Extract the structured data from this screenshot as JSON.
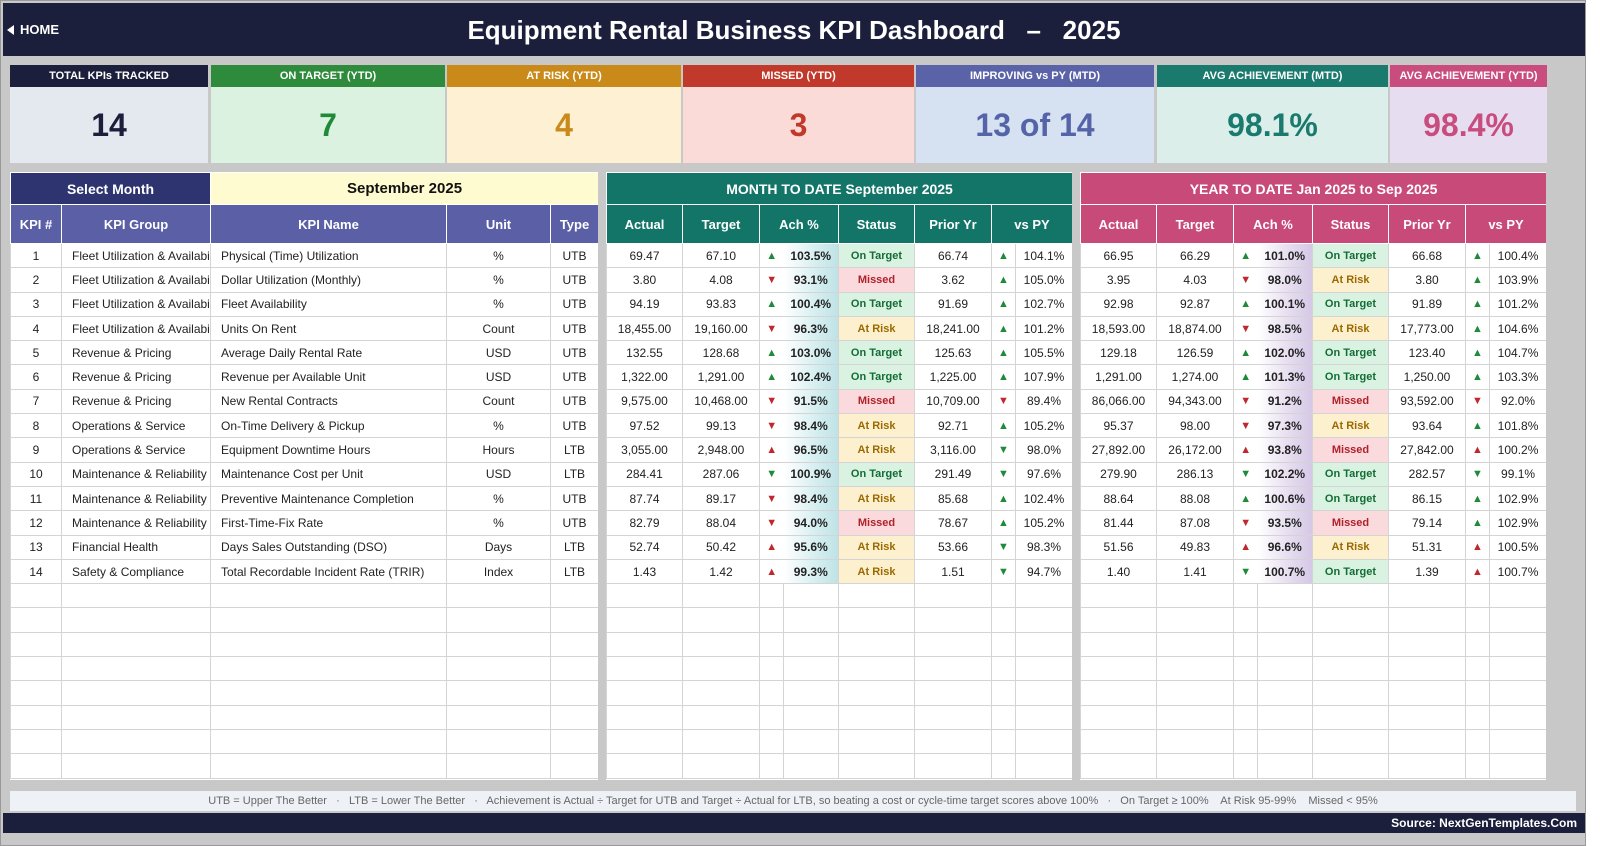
{
  "header": {
    "home_label": "HOME",
    "title": "Equipment Rental Business KPI Dashboard   –   2025"
  },
  "cards": [
    {
      "label": "TOTAL KPIs TRACKED",
      "value": "14",
      "head_color": "#1b1f3b",
      "bg": "#e4e8ef",
      "fg": "#1b1f3b"
    },
    {
      "label": "ON TARGET (YTD)",
      "value": "7",
      "head_color": "#2e8b3c",
      "bg": "#dcf2e1",
      "fg": "#1f8a38"
    },
    {
      "label": "AT RISK (YTD)",
      "value": "4",
      "head_color": "#c98a1a",
      "bg": "#fdf0d3",
      "fg": "#c98a1a"
    },
    {
      "label": "MISSED (YTD)",
      "value": "3",
      "head_color": "#c0392b",
      "bg": "#fadbd8",
      "fg": "#c0392b"
    },
    {
      "label": "IMPROVING vs PY (MTD)",
      "value": "13 of 14",
      "head_color": "#5b63a8",
      "bg": "#d6e2f1",
      "fg": "#5563a8"
    },
    {
      "label": "AVG ACHIEVEMENT (MTD)",
      "value": "98.1%",
      "head_color": "#1a7a6e",
      "bg": "#dbeeea",
      "fg": "#1a7a6e"
    },
    {
      "label": "AVG ACHIEVEMENT (YTD)",
      "value": "98.4%",
      "head_color": "#c84c7e",
      "bg": "#e6def0",
      "fg": "#c84c7e"
    }
  ],
  "selector": {
    "label": "Select Month",
    "value": "September 2025"
  },
  "mtd": {
    "title": "MONTH TO DATE      September 2025"
  },
  "ytd": {
    "title": "YEAR TO DATE      Jan 2025  to  Sep 2025"
  },
  "columns": {
    "left": [
      "KPI #",
      "KPI Group",
      "KPI Name",
      "Unit",
      "Type"
    ],
    "period": [
      "Actual",
      "Target",
      "Ach %",
      "Status",
      "Prior Yr",
      "vs PY"
    ]
  },
  "colors": {
    "header_navy": "#1b1f3b",
    "left_header": "#5a5fa6",
    "mtd_header": "#137568",
    "ytd_header": "#c84a78"
  },
  "rows": [
    {
      "n": "1",
      "group": "Fleet Utilization & Availabil",
      "name": "Physical (Time) Utilization",
      "unit": "%",
      "type": "UTB",
      "m": {
        "actual": "69.47",
        "target": "67.10",
        "ach_dir": "up",
        "ach": "103.5%",
        "status": "On Target",
        "prior": "66.74",
        "py_dir": "up",
        "vspy": "104.1%"
      },
      "y": {
        "actual": "66.95",
        "target": "66.29",
        "ach_dir": "up",
        "ach": "101.0%",
        "status": "On Target",
        "prior": "66.68",
        "py_dir": "up",
        "vspy": "100.4%"
      }
    },
    {
      "n": "2",
      "group": "Fleet Utilization & Availabil",
      "name": "Dollar Utilization (Monthly)",
      "unit": "%",
      "type": "UTB",
      "m": {
        "actual": "3.80",
        "target": "4.08",
        "ach_dir": "down",
        "ach": "93.1%",
        "status": "Missed",
        "prior": "3.62",
        "py_dir": "up",
        "vspy": "105.0%"
      },
      "y": {
        "actual": "3.95",
        "target": "4.03",
        "ach_dir": "down",
        "ach": "98.0%",
        "status": "At Risk",
        "prior": "3.80",
        "py_dir": "up",
        "vspy": "103.9%"
      }
    },
    {
      "n": "3",
      "group": "Fleet Utilization & Availabil",
      "name": "Fleet Availability",
      "unit": "%",
      "type": "UTB",
      "m": {
        "actual": "94.19",
        "target": "93.83",
        "ach_dir": "up",
        "ach": "100.4%",
        "status": "On Target",
        "prior": "91.69",
        "py_dir": "up",
        "vspy": "102.7%"
      },
      "y": {
        "actual": "92.98",
        "target": "92.87",
        "ach_dir": "up",
        "ach": "100.1%",
        "status": "On Target",
        "prior": "91.89",
        "py_dir": "up",
        "vspy": "101.2%"
      }
    },
    {
      "n": "4",
      "group": "Fleet Utilization & Availabil",
      "name": "Units On Rent",
      "unit": "Count",
      "type": "UTB",
      "m": {
        "actual": "18,455.00",
        "target": "19,160.00",
        "ach_dir": "down",
        "ach": "96.3%",
        "status": "At Risk",
        "prior": "18,241.00",
        "py_dir": "up",
        "vspy": "101.2%"
      },
      "y": {
        "actual": "18,593.00",
        "target": "18,874.00",
        "ach_dir": "down",
        "ach": "98.5%",
        "status": "At Risk",
        "prior": "17,773.00",
        "py_dir": "up",
        "vspy": "104.6%"
      }
    },
    {
      "n": "5",
      "group": "Revenue & Pricing",
      "name": "Average Daily Rental Rate",
      "unit": "USD",
      "type": "UTB",
      "m": {
        "actual": "132.55",
        "target": "128.68",
        "ach_dir": "up",
        "ach": "103.0%",
        "status": "On Target",
        "prior": "125.63",
        "py_dir": "up",
        "vspy": "105.5%"
      },
      "y": {
        "actual": "129.18",
        "target": "126.59",
        "ach_dir": "up",
        "ach": "102.0%",
        "status": "On Target",
        "prior": "123.40",
        "py_dir": "up",
        "vspy": "104.7%"
      }
    },
    {
      "n": "6",
      "group": "Revenue & Pricing",
      "name": "Revenue per Available Unit",
      "unit": "USD",
      "type": "UTB",
      "m": {
        "actual": "1,322.00",
        "target": "1,291.00",
        "ach_dir": "up",
        "ach": "102.4%",
        "status": "On Target",
        "prior": "1,225.00",
        "py_dir": "up",
        "vspy": "107.9%"
      },
      "y": {
        "actual": "1,291.00",
        "target": "1,274.00",
        "ach_dir": "up",
        "ach": "101.3%",
        "status": "On Target",
        "prior": "1,250.00",
        "py_dir": "up",
        "vspy": "103.3%"
      }
    },
    {
      "n": "7",
      "group": "Revenue & Pricing",
      "name": "New Rental Contracts",
      "unit": "Count",
      "type": "UTB",
      "m": {
        "actual": "9,575.00",
        "target": "10,468.00",
        "ach_dir": "down",
        "ach": "91.5%",
        "status": "Missed",
        "prior": "10,709.00",
        "py_dir": "down",
        "vspy": "89.4%"
      },
      "y": {
        "actual": "86,066.00",
        "target": "94,343.00",
        "ach_dir": "down",
        "ach": "91.2%",
        "status": "Missed",
        "prior": "93,592.00",
        "py_dir": "down",
        "vspy": "92.0%"
      }
    },
    {
      "n": "8",
      "group": "Operations & Service",
      "name": "On-Time Delivery & Pickup",
      "unit": "%",
      "type": "UTB",
      "m": {
        "actual": "97.52",
        "target": "99.13",
        "ach_dir": "down",
        "ach": "98.4%",
        "status": "At Risk",
        "prior": "92.71",
        "py_dir": "up",
        "vspy": "105.2%"
      },
      "y": {
        "actual": "95.37",
        "target": "98.00",
        "ach_dir": "down",
        "ach": "97.3%",
        "status": "At Risk",
        "prior": "93.64",
        "py_dir": "up",
        "vspy": "101.8%"
      }
    },
    {
      "n": "9",
      "group": "Operations & Service",
      "name": "Equipment Downtime Hours",
      "unit": "Hours",
      "type": "LTB",
      "m": {
        "actual": "3,055.00",
        "target": "2,948.00",
        "ach_dir": "up_red",
        "ach": "96.5%",
        "status": "At Risk",
        "prior": "3,116.00",
        "py_dir": "down_green",
        "vspy": "98.0%"
      },
      "y": {
        "actual": "27,892.00",
        "target": "26,172.00",
        "ach_dir": "up_red",
        "ach": "93.8%",
        "status": "Missed",
        "prior": "27,842.00",
        "py_dir": "up_red",
        "vspy": "100.2%"
      }
    },
    {
      "n": "10",
      "group": "Maintenance & Reliability",
      "name": "Maintenance Cost per Unit",
      "unit": "USD",
      "type": "LTB",
      "m": {
        "actual": "284.41",
        "target": "287.06",
        "ach_dir": "down_green",
        "ach": "100.9%",
        "status": "On Target",
        "prior": "291.49",
        "py_dir": "down_green",
        "vspy": "97.6%"
      },
      "y": {
        "actual": "279.90",
        "target": "286.13",
        "ach_dir": "down_green",
        "ach": "102.2%",
        "status": "On Target",
        "prior": "282.57",
        "py_dir": "down_green",
        "vspy": "99.1%"
      }
    },
    {
      "n": "11",
      "group": "Maintenance & Reliability",
      "name": "Preventive Maintenance Completion",
      "unit": "%",
      "type": "UTB",
      "m": {
        "actual": "87.74",
        "target": "89.17",
        "ach_dir": "down",
        "ach": "98.4%",
        "status": "At Risk",
        "prior": "85.68",
        "py_dir": "up",
        "vspy": "102.4%"
      },
      "y": {
        "actual": "88.64",
        "target": "88.08",
        "ach_dir": "up",
        "ach": "100.6%",
        "status": "On Target",
        "prior": "86.15",
        "py_dir": "up",
        "vspy": "102.9%"
      }
    },
    {
      "n": "12",
      "group": "Maintenance & Reliability",
      "name": "First-Time-Fix Rate",
      "unit": "%",
      "type": "UTB",
      "m": {
        "actual": "82.79",
        "target": "88.04",
        "ach_dir": "down",
        "ach": "94.0%",
        "status": "Missed",
        "prior": "78.67",
        "py_dir": "up",
        "vspy": "105.2%"
      },
      "y": {
        "actual": "81.44",
        "target": "87.08",
        "ach_dir": "down",
        "ach": "93.5%",
        "status": "Missed",
        "prior": "79.14",
        "py_dir": "up",
        "vspy": "102.9%"
      }
    },
    {
      "n": "13",
      "group": "Financial Health",
      "name": "Days Sales Outstanding (DSO)",
      "unit": "Days",
      "type": "LTB",
      "m": {
        "actual": "52.74",
        "target": "50.42",
        "ach_dir": "up_red",
        "ach": "95.6%",
        "status": "At Risk",
        "prior": "53.66",
        "py_dir": "down_green",
        "vspy": "98.3%"
      },
      "y": {
        "actual": "51.56",
        "target": "49.83",
        "ach_dir": "up_red",
        "ach": "96.6%",
        "status": "At Risk",
        "prior": "51.31",
        "py_dir": "up_red",
        "vspy": "100.5%"
      }
    },
    {
      "n": "14",
      "group": "Safety & Compliance",
      "name": "Total Recordable Incident Rate (TRIR)",
      "unit": "Index",
      "type": "LTB",
      "m": {
        "actual": "1.43",
        "target": "1.42",
        "ach_dir": "up_red",
        "ach": "99.3%",
        "status": "At Risk",
        "prior": "1.51",
        "py_dir": "down_green",
        "vspy": "94.7%"
      },
      "y": {
        "actual": "1.40",
        "target": "1.41",
        "ach_dir": "down_green",
        "ach": "100.7%",
        "status": "On Target",
        "prior": "1.39",
        "py_dir": "up_red",
        "vspy": "100.7%"
      }
    }
  ],
  "empty_rows": 8,
  "legend": "UTB = Upper The Better   ·   LTB = Lower The Better   ·   Achievement is Actual ÷ Target for UTB and Target ÷ Actual for LTB, so beating a cost or cycle-time target scores above 100%   ·   On Target ≥ 100%    At Risk 95-99%    Missed < 95%",
  "source": "Source: NextGenTemplates.Com"
}
